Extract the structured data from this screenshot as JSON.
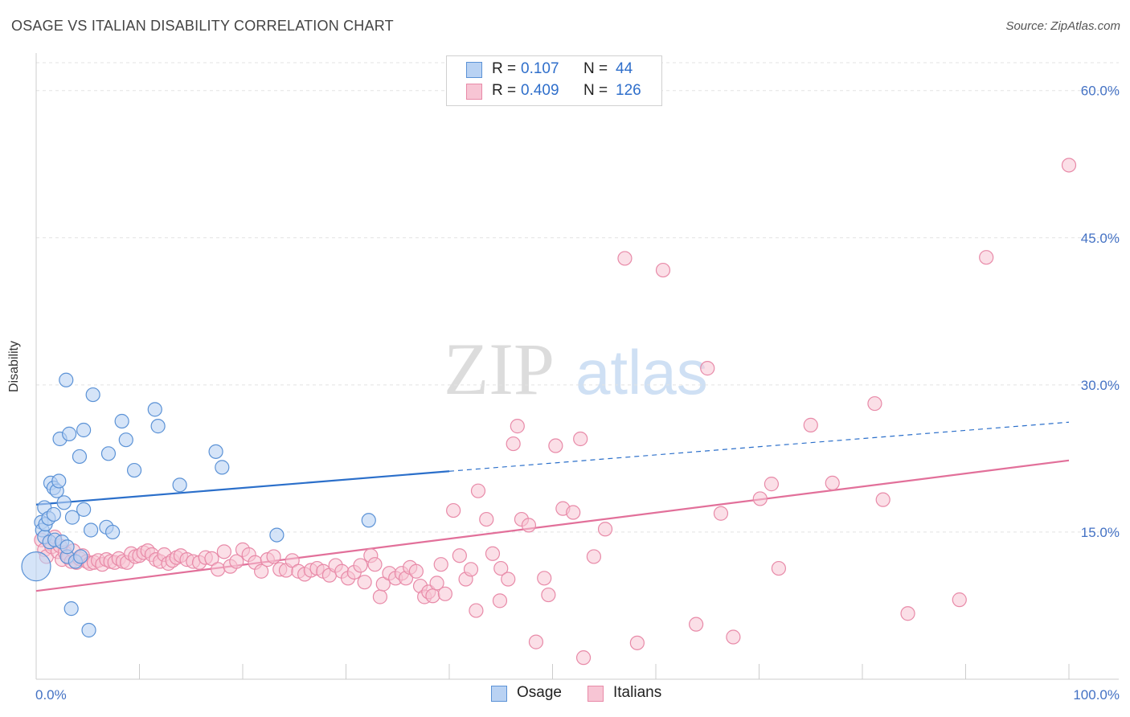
{
  "title": "OSAGE VS ITALIAN DISABILITY CORRELATION CHART",
  "source": "Source: ZipAtlas.com",
  "watermark": {
    "zip": "ZIP",
    "atlas": "atlas"
  },
  "colors": {
    "osage_fill": "#b9d2f3",
    "osage_stroke": "#5b92d6",
    "osage_line": "#2b6fca",
    "italians_fill": "#f7c5d4",
    "italians_stroke": "#e88aa8",
    "italians_line": "#e2709a",
    "tick_text": "#4472c4",
    "grid": "#e3e3e3"
  },
  "legend": {
    "osage": {
      "r_label": "R =",
      "r_value": "0.107",
      "n_label": "N =",
      "n_value": "44"
    },
    "italians": {
      "r_label": "R =",
      "r_value": "0.409",
      "n_label": "N =",
      "n_value": "126"
    }
  },
  "bottom_legend": {
    "osage": "Osage",
    "italians": "Italians"
  },
  "chart_data": {
    "type": "scatter",
    "title": "OSAGE VS ITALIAN DISABILITY CORRELATION CHART",
    "xlabel": "",
    "ylabel": "Disability",
    "xlim": [
      0,
      100
    ],
    "ylim": [
      0,
      63.5
    ],
    "x_tick_labels": [
      "0.0%",
      "100.0%"
    ],
    "y_ticks": [
      15,
      30,
      45,
      60
    ],
    "y_tick_labels": [
      "15.0%",
      "30.0%",
      "45.0%",
      "60.0%"
    ],
    "grid": "horizontal dashed",
    "legend_placement": "top-center",
    "series": [
      {
        "name": "Osage",
        "points": [
          [
            0.0,
            11.5
          ],
          [
            0.5,
            16.0
          ],
          [
            0.6,
            15.2
          ],
          [
            0.8,
            17.5
          ],
          [
            0.8,
            14.5
          ],
          [
            0.9,
            15.8
          ],
          [
            1.2,
            16.4
          ],
          [
            1.3,
            14.0
          ],
          [
            1.4,
            20.0
          ],
          [
            1.7,
            19.5
          ],
          [
            1.7,
            16.8
          ],
          [
            1.8,
            14.2
          ],
          [
            2.0,
            19.2
          ],
          [
            2.2,
            20.2
          ],
          [
            2.3,
            24.5
          ],
          [
            2.5,
            14.0
          ],
          [
            2.7,
            18.0
          ],
          [
            2.9,
            30.5
          ],
          [
            3.0,
            12.5
          ],
          [
            3.0,
            13.5
          ],
          [
            3.2,
            25.0
          ],
          [
            3.4,
            7.2
          ],
          [
            3.5,
            16.5
          ],
          [
            3.8,
            12.0
          ],
          [
            4.2,
            22.7
          ],
          [
            4.3,
            12.5
          ],
          [
            4.6,
            25.4
          ],
          [
            4.6,
            17.3
          ],
          [
            5.1,
            5.0
          ],
          [
            5.3,
            15.2
          ],
          [
            5.5,
            29.0
          ],
          [
            6.8,
            15.5
          ],
          [
            7.0,
            23.0
          ],
          [
            7.4,
            15.0
          ],
          [
            8.3,
            26.3
          ],
          [
            8.7,
            24.4
          ],
          [
            9.5,
            21.3
          ],
          [
            11.5,
            27.5
          ],
          [
            11.8,
            25.8
          ],
          [
            13.9,
            19.8
          ],
          [
            17.4,
            23.2
          ],
          [
            18.0,
            21.6
          ],
          [
            23.3,
            14.7
          ],
          [
            32.2,
            16.2
          ]
        ],
        "trend": {
          "x1": 0,
          "y1": 17.8,
          "x2": 40,
          "y2": 21.2,
          "extends_dashed_to": {
            "x": 100,
            "y": 26.2
          }
        }
      },
      {
        "name": "Italians",
        "points": [
          [
            0.5,
            14.2
          ],
          [
            0.8,
            13.2
          ],
          [
            1.0,
            12.5
          ],
          [
            1.3,
            14.0
          ],
          [
            1.5,
            13.5
          ],
          [
            1.8,
            14.5
          ],
          [
            2.1,
            13.0
          ],
          [
            2.3,
            13.6
          ],
          [
            2.5,
            12.2
          ],
          [
            2.8,
            12.9
          ],
          [
            3.1,
            12.4
          ],
          [
            3.4,
            12.0
          ],
          [
            3.6,
            13.1
          ],
          [
            3.9,
            11.9
          ],
          [
            4.2,
            12.3
          ],
          [
            4.5,
            12.6
          ],
          [
            4.9,
            12.0
          ],
          [
            5.2,
            11.8
          ],
          [
            5.6,
            11.9
          ],
          [
            6.0,
            12.1
          ],
          [
            6.4,
            11.7
          ],
          [
            6.8,
            12.2
          ],
          [
            7.2,
            12.0
          ],
          [
            7.6,
            11.9
          ],
          [
            8.0,
            12.3
          ],
          [
            8.4,
            12.0
          ],
          [
            8.8,
            11.9
          ],
          [
            9.2,
            12.8
          ],
          [
            9.6,
            12.5
          ],
          [
            10.0,
            12.6
          ],
          [
            10.4,
            12.9
          ],
          [
            10.8,
            13.1
          ],
          [
            11.2,
            12.7
          ],
          [
            11.6,
            12.2
          ],
          [
            12.0,
            12.0
          ],
          [
            12.4,
            12.7
          ],
          [
            12.8,
            11.8
          ],
          [
            13.2,
            12.1
          ],
          [
            13.6,
            12.4
          ],
          [
            14.0,
            12.6
          ],
          [
            14.6,
            12.2
          ],
          [
            15.2,
            12.0
          ],
          [
            15.8,
            11.9
          ],
          [
            16.4,
            12.4
          ],
          [
            17.0,
            12.3
          ],
          [
            17.6,
            11.2
          ],
          [
            18.2,
            13.0
          ],
          [
            18.8,
            11.5
          ],
          [
            19.4,
            12.0
          ],
          [
            20.0,
            13.2
          ],
          [
            20.6,
            12.7
          ],
          [
            21.2,
            11.9
          ],
          [
            21.8,
            11.0
          ],
          [
            22.4,
            12.2
          ],
          [
            23.0,
            12.5
          ],
          [
            23.6,
            11.2
          ],
          [
            24.2,
            11.1
          ],
          [
            24.8,
            12.1
          ],
          [
            25.4,
            11.0
          ],
          [
            26.0,
            10.7
          ],
          [
            26.6,
            11.1
          ],
          [
            27.2,
            11.3
          ],
          [
            27.8,
            11.0
          ],
          [
            28.4,
            10.6
          ],
          [
            29.0,
            11.6
          ],
          [
            29.6,
            11.0
          ],
          [
            30.2,
            10.3
          ],
          [
            30.8,
            10.9
          ],
          [
            31.4,
            11.6
          ],
          [
            31.8,
            9.9
          ],
          [
            32.4,
            12.6
          ],
          [
            32.8,
            11.7
          ],
          [
            33.3,
            8.4
          ],
          [
            33.6,
            9.7
          ],
          [
            34.2,
            10.8
          ],
          [
            34.8,
            10.3
          ],
          [
            35.4,
            10.8
          ],
          [
            35.8,
            10.3
          ],
          [
            36.2,
            11.4
          ],
          [
            36.8,
            11.0
          ],
          [
            37.2,
            9.5
          ],
          [
            37.6,
            8.4
          ],
          [
            38.0,
            8.9
          ],
          [
            38.4,
            8.5
          ],
          [
            38.8,
            9.8
          ],
          [
            39.2,
            11.7
          ],
          [
            39.6,
            8.7
          ],
          [
            40.4,
            17.2
          ],
          [
            41.0,
            12.6
          ],
          [
            41.6,
            10.2
          ],
          [
            42.1,
            11.2
          ],
          [
            42.8,
            19.2
          ],
          [
            42.6,
            7.0
          ],
          [
            43.6,
            16.3
          ],
          [
            44.2,
            12.8
          ],
          [
            44.9,
            8.0
          ],
          [
            45.0,
            11.3
          ],
          [
            45.7,
            10.2
          ],
          [
            46.2,
            24.0
          ],
          [
            46.6,
            25.8
          ],
          [
            47.0,
            16.3
          ],
          [
            47.7,
            15.7
          ],
          [
            48.4,
            3.8
          ],
          [
            49.2,
            10.3
          ],
          [
            49.6,
            8.6
          ],
          [
            50.3,
            23.8
          ],
          [
            51.0,
            17.4
          ],
          [
            52.0,
            17.0
          ],
          [
            52.7,
            24.5
          ],
          [
            53.0,
            2.2
          ],
          [
            54.0,
            12.5
          ],
          [
            55.1,
            15.3
          ],
          [
            57.0,
            42.9
          ],
          [
            58.2,
            3.7
          ],
          [
            60.7,
            41.7
          ],
          [
            63.9,
            5.6
          ],
          [
            65.0,
            31.7
          ],
          [
            66.3,
            16.9
          ],
          [
            67.5,
            4.3
          ],
          [
            70.1,
            18.4
          ],
          [
            71.2,
            19.9
          ],
          [
            71.9,
            11.3
          ],
          [
            75.0,
            25.9
          ],
          [
            77.1,
            20.0
          ],
          [
            81.2,
            28.1
          ],
          [
            82.0,
            18.3
          ]
        ],
        "trend": {
          "x1": 0,
          "y1": 9.0,
          "x2": 100,
          "y2": 22.3
        }
      }
    ],
    "extra_points": {
      "Italians": [
        [
          84.4,
          6.7
        ],
        [
          89.4,
          8.1
        ],
        [
          92.0,
          43.0
        ],
        [
          100.0,
          52.4
        ]
      ]
    }
  }
}
